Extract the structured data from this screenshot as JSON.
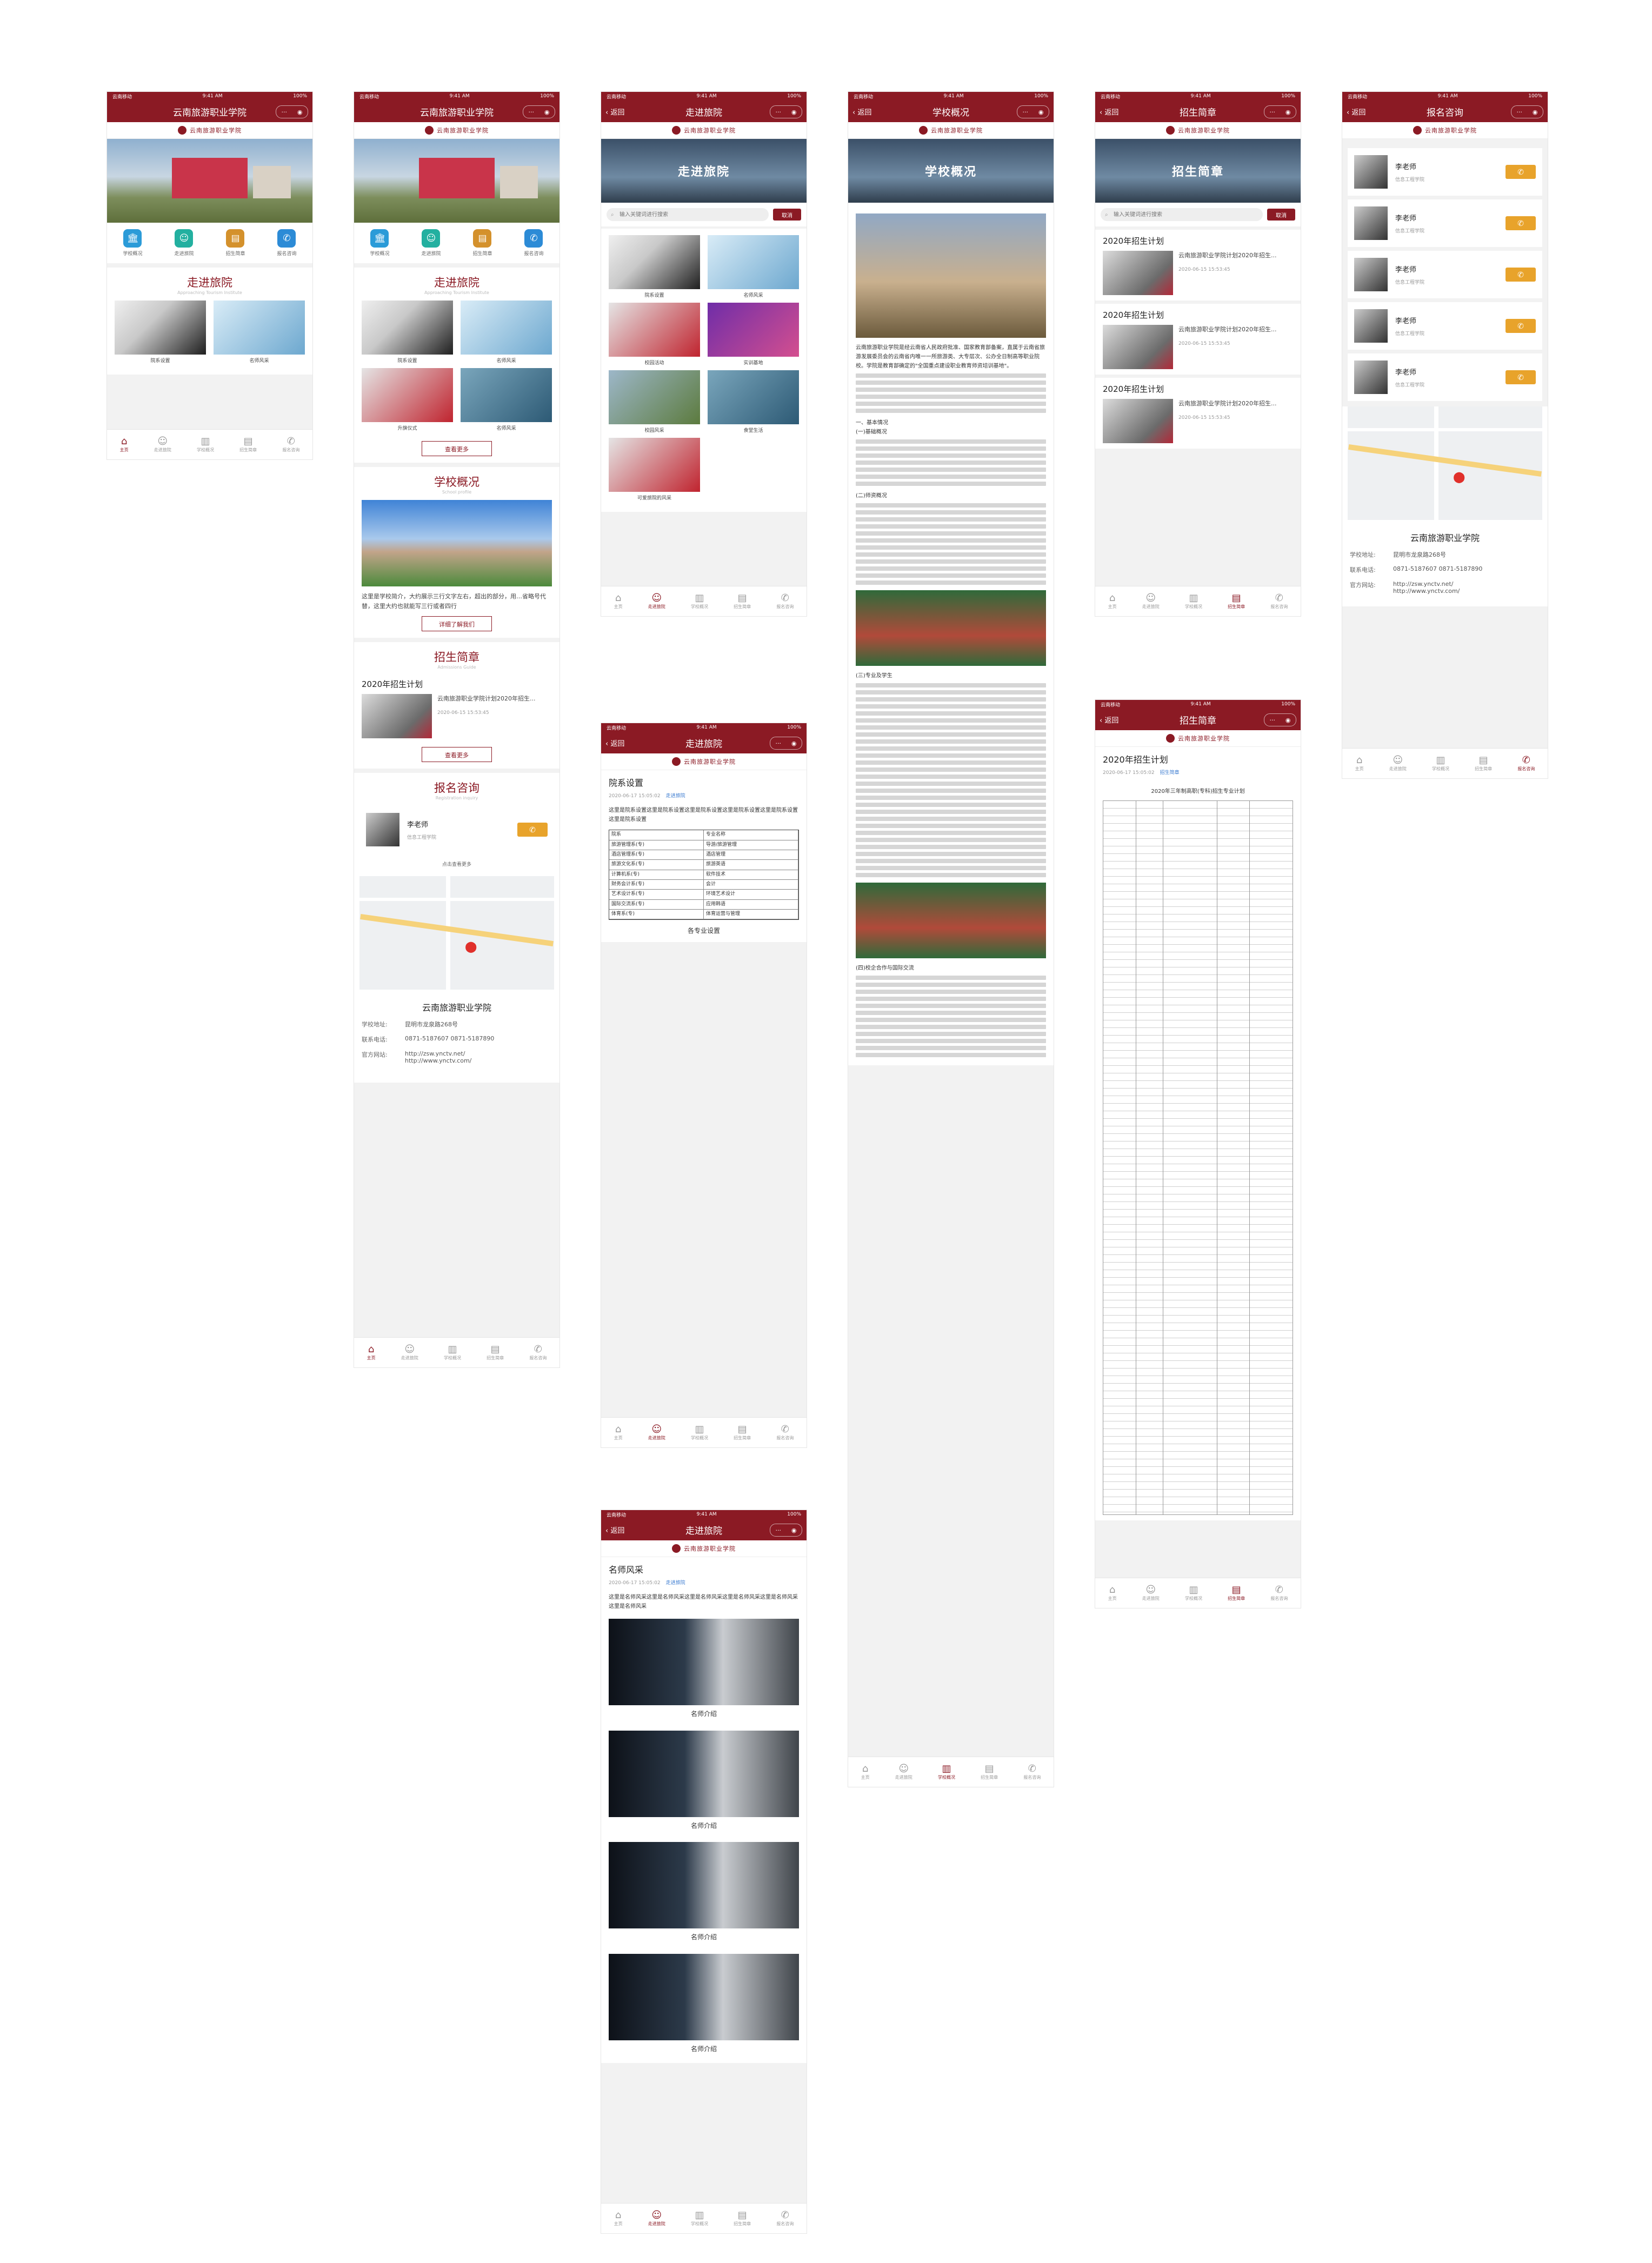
{
  "status": {
    "carrier": "云南移动",
    "time": "9:41 AM",
    "battery": "100%"
  },
  "app_title": "云南旅游职业学院",
  "logo_text": "云南旅游职业学院",
  "back": "返回",
  "quicknav": [
    {
      "label": "学校概况",
      "icon": "school-icon",
      "color": "#2b9bd8"
    },
    {
      "label": "走进旅院",
      "icon": "chat-icon",
      "color": "#23b0a0"
    },
    {
      "label": "招生简章",
      "icon": "document-icon",
      "color": "#d4912c"
    },
    {
      "label": "报名咨询",
      "icon": "phone-icon",
      "color": "#2c8bd6"
    }
  ],
  "tabs": [
    {
      "label": "主页",
      "icon": "⌂"
    },
    {
      "label": "走进旅院",
      "icon": "☺"
    },
    {
      "label": "学校概况",
      "icon": "▥"
    },
    {
      "label": "招生简章",
      "icon": "▤"
    },
    {
      "label": "报名咨询",
      "icon": "✆"
    }
  ],
  "home": {
    "sec1_title": "走进旅院",
    "sec1_sub": "Approaching Tourism Institute",
    "gallery": [
      {
        "cap": "院系设置"
      },
      {
        "cap": "名师风采"
      },
      {
        "cap": "升旗仪式"
      },
      {
        "cap": "名师风采"
      }
    ],
    "more": "查看更多",
    "sec2_title": "学校概况",
    "sec2_sub": "School profile",
    "profile_text": "这里是学校简介，大约展示三行文字左右，超出的部分，用…省略号代替，这里大约也就能写三行或者四行",
    "detail_btn": "详细了解我们",
    "sec3_title": "招生简章",
    "sec3_sub": "Admissions Guide",
    "plan_title": "2020年招生计划",
    "plan_text": "云南旅游职业学院计划2020年招生...",
    "plan_date": "2020-06-15  15:53:45",
    "sec4_title": "报名咨询",
    "sec4_sub": "Registration inquiry",
    "teacher_name": "李老师",
    "teacher_org": "信息工程学院",
    "view_more": "点击查看更多"
  },
  "search": {
    "placeholder": "输入关键词进行搜索",
    "cancel": "取消"
  },
  "zjly": {
    "title": "走进旅院",
    "items": [
      {
        "cap": "院系设置"
      },
      {
        "cap": "名师风采"
      },
      {
        "cap": "校园活动"
      },
      {
        "cap": "实训基地"
      },
      {
        "cap": "校园风采"
      },
      {
        "cap": "食堂生活"
      },
      {
        "cap": "可爱旅院的风采"
      }
    ]
  },
  "xxgk": {
    "title": "学校概况",
    "intro": "云南旅游职业学院是经云南省人民政府批准、国家教育部备案，直属于云南省旅游发展委员会的云南省内唯一一所旅游类、大专层次、公办全日制高等职业院校。学院是教育部确定的\"全国重点建设职业教育师资培训基地\"。",
    "s1": "一、基本情况",
    "s2": "(一)基础概况",
    "s3": "(二)师资概况",
    "s4": "(三)专业及学生",
    "s5": "(四)校企合作与国际交流"
  },
  "zsjz": {
    "title": "招生简章",
    "items": [
      {
        "h": "2020年招生计划",
        "t": "云南旅游职业学院计划2020年招生...",
        "d": "2020-06-15  15:53:45"
      },
      {
        "h": "2020年招生计划",
        "t": "云南旅游职业学院计划2020年招生...",
        "d": "2020-06-15  15:53:45"
      },
      {
        "h": "2020年招生计划",
        "t": "云南旅游职业学院计划2020年招生...",
        "d": "2020-06-15  15:53:45"
      }
    ]
  },
  "bmzx": {
    "title": "报名咨询",
    "teachers": [
      {
        "n": "李老师",
        "o": "信息工程学院"
      },
      {
        "n": "李老师",
        "o": "信息工程学院"
      },
      {
        "n": "李老师",
        "o": "信息工程学院"
      },
      {
        "n": "李老师",
        "o": "信息工程学院"
      },
      {
        "n": "李老师",
        "o": "信息工程学院"
      }
    ],
    "school": "云南旅游职业学院",
    "addr_k": "学校地址:",
    "addr_v": "昆明市龙泉路268号",
    "tel_k": "联系电话:",
    "tel_v": "0871-5187607   0871-5187890",
    "web_k": "官方网站:",
    "web_v1": "http://zsw.ynctv.net/",
    "web_v2": "http://www.ynctv.com/"
  },
  "yxsz": {
    "title": "走进旅院",
    "h": "院系设置",
    "date": "2020-06-17 15:05:02",
    "src": "走进旅院",
    "body": "这里是院系设置这里是院系设置这里是院系设置这里是院系设置这里是院系设置这里是院系设置",
    "caption": "各专业设置",
    "table": [
      [
        "院系",
        "专业名称"
      ],
      [
        "旅游管理系(专)",
        "导游/旅游管理"
      ],
      [
        "酒店管理系(专)",
        "酒店管理"
      ],
      [
        "旅游文化系(专)",
        "旅游英语"
      ],
      [
        "计算机系(专)",
        "软件技术"
      ],
      [
        "财务会计系(专)",
        "会计"
      ],
      [
        "艺术设计系(专)",
        "环境艺术设计"
      ],
      [
        "国际交流系(专)",
        "应用韩语"
      ],
      [
        "体育系(专)",
        "体育运营与管理"
      ]
    ]
  },
  "zsjz2": {
    "title": "招生简章",
    "h": "2020年招生计划",
    "date": "2020-06-17 15:05:02",
    "src": "招生简章",
    "caption": "2020年三年制高职(专科)招生专业计划"
  },
  "msfc": {
    "title": "走进旅院",
    "h": "名师风采",
    "date": "2020-06-17 15:05:02",
    "src": "走进旅院",
    "body": "这里是名师风采这里是名师风采这里是名师风采这里是名师风采这里是名师风采这里是名师风采",
    "cap": "名师介绍"
  }
}
